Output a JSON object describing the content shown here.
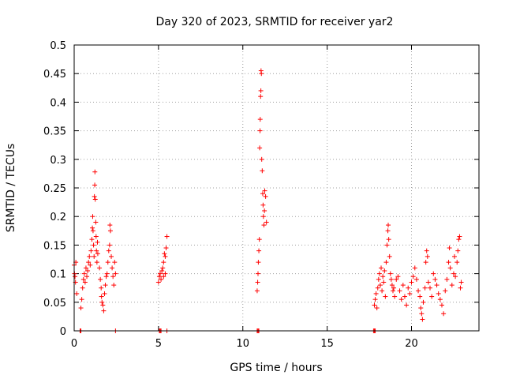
{
  "chart_data": {
    "type": "scatter",
    "title": "Day 320 of 2023, SRMTID for receiver yar2",
    "xlabel": "GPS time / hours",
    "ylabel": "SRMTID / TECUs",
    "xlim": [
      0,
      24
    ],
    "ylim": [
      0,
      0.5
    ],
    "x_ticks": [
      0,
      5,
      10,
      15,
      20
    ],
    "x_tick_labels": [
      "0",
      "5",
      "10",
      "15",
      "20"
    ],
    "y_ticks": [
      0,
      0.05,
      0.1,
      0.15,
      0.2,
      0.25,
      0.3,
      0.35,
      0.4,
      0.45,
      0.5
    ],
    "y_tick_labels": [
      "0",
      "0.05",
      "0.1",
      "0.15",
      "0.2",
      "0.25",
      "0.3",
      "0.35",
      "0.4",
      "0.45",
      "0.5"
    ],
    "grid": true,
    "marker": "+",
    "marker_color": "#ff0000",
    "series": [
      {
        "name": "SRMTID",
        "points": [
          [
            0.0,
            0.115
          ],
          [
            0.02,
            0.1
          ],
          [
            0.05,
            0.095
          ],
          [
            0.08,
            0.085
          ],
          [
            0.1,
            0.12
          ],
          [
            0.15,
            0.065
          ],
          [
            0.4,
            0.04
          ],
          [
            0.45,
            0.055
          ],
          [
            0.5,
            0.075
          ],
          [
            0.55,
            0.09
          ],
          [
            0.6,
            0.1
          ],
          [
            0.65,
            0.085
          ],
          [
            0.7,
            0.11
          ],
          [
            0.75,
            0.095
          ],
          [
            0.8,
            0.105
          ],
          [
            0.85,
            0.12
          ],
          [
            0.9,
            0.13
          ],
          [
            0.95,
            0.115
          ],
          [
            1.0,
            0.14
          ],
          [
            1.05,
            0.16
          ],
          [
            1.08,
            0.18
          ],
          [
            1.1,
            0.2
          ],
          [
            1.12,
            0.175
          ],
          [
            1.15,
            0.15
          ],
          [
            1.18,
            0.13
          ],
          [
            1.2,
            0.235
          ],
          [
            1.22,
            0.255
          ],
          [
            1.23,
            0.278
          ],
          [
            1.25,
            0.23
          ],
          [
            1.28,
            0.19
          ],
          [
            1.3,
            0.165
          ],
          [
            1.32,
            0.14
          ],
          [
            1.35,
            0.12
          ],
          [
            1.38,
            0.155
          ],
          [
            1.4,
            0.135
          ],
          [
            1.5,
            0.11
          ],
          [
            1.55,
            0.09
          ],
          [
            1.6,
            0.075
          ],
          [
            1.62,
            0.06
          ],
          [
            1.65,
            0.05
          ],
          [
            1.7,
            0.045
          ],
          [
            1.75,
            0.035
          ],
          [
            1.8,
            0.065
          ],
          [
            1.85,
            0.08
          ],
          [
            1.9,
            0.095
          ],
          [
            1.95,
            0.1
          ],
          [
            2.0,
            0.12
          ],
          [
            2.05,
            0.14
          ],
          [
            2.1,
            0.15
          ],
          [
            2.12,
            0.185
          ],
          [
            2.15,
            0.175
          ],
          [
            2.2,
            0.13
          ],
          [
            2.25,
            0.11
          ],
          [
            2.3,
            0.095
          ],
          [
            2.35,
            0.08
          ],
          [
            2.4,
            0.12
          ],
          [
            2.45,
            0.1
          ],
          [
            5.0,
            0.085
          ],
          [
            5.05,
            0.095
          ],
          [
            5.1,
            0.1
          ],
          [
            5.15,
            0.09
          ],
          [
            5.2,
            0.105
          ],
          [
            5.25,
            0.11
          ],
          [
            5.3,
            0.12
          ],
          [
            5.35,
            0.135
          ],
          [
            5.4,
            0.13
          ],
          [
            5.45,
            0.145
          ],
          [
            5.5,
            0.165
          ],
          [
            5.3,
            0.095
          ],
          [
            5.4,
            0.1
          ],
          [
            10.85,
            0.07
          ],
          [
            10.88,
            0.085
          ],
          [
            10.9,
            0.1
          ],
          [
            10.92,
            0.12
          ],
          [
            10.95,
            0.14
          ],
          [
            10.98,
            0.16
          ],
          [
            11.0,
            0.32
          ],
          [
            11.02,
            0.35
          ],
          [
            11.03,
            0.37
          ],
          [
            11.05,
            0.41
          ],
          [
            11.07,
            0.42
          ],
          [
            11.08,
            0.455
          ],
          [
            11.1,
            0.45
          ],
          [
            11.12,
            0.3
          ],
          [
            11.15,
            0.28
          ],
          [
            11.18,
            0.24
          ],
          [
            11.2,
            0.22
          ],
          [
            11.22,
            0.2
          ],
          [
            11.25,
            0.185
          ],
          [
            11.28,
            0.21
          ],
          [
            11.3,
            0.245
          ],
          [
            11.35,
            0.235
          ],
          [
            11.4,
            0.19
          ],
          [
            17.8,
            0.045
          ],
          [
            17.85,
            0.055
          ],
          [
            17.9,
            0.065
          ],
          [
            17.95,
            0.04
          ],
          [
            18.0,
            0.075
          ],
          [
            18.05,
            0.09
          ],
          [
            18.1,
            0.1
          ],
          [
            18.15,
            0.08
          ],
          [
            18.2,
            0.11
          ],
          [
            18.25,
            0.07
          ],
          [
            18.3,
            0.095
          ],
          [
            18.35,
            0.085
          ],
          [
            18.4,
            0.105
          ],
          [
            18.45,
            0.06
          ],
          [
            18.5,
            0.12
          ],
          [
            18.55,
            0.15
          ],
          [
            18.6,
            0.175
          ],
          [
            18.62,
            0.185
          ],
          [
            18.65,
            0.16
          ],
          [
            18.7,
            0.13
          ],
          [
            18.75,
            0.1
          ],
          [
            18.8,
            0.09
          ],
          [
            18.85,
            0.08
          ],
          [
            18.9,
            0.07
          ],
          [
            18.95,
            0.075
          ],
          [
            19.0,
            0.06
          ],
          [
            19.1,
            0.09
          ],
          [
            19.2,
            0.095
          ],
          [
            19.3,
            0.07
          ],
          [
            19.4,
            0.055
          ],
          [
            19.5,
            0.08
          ],
          [
            19.6,
            0.06
          ],
          [
            19.7,
            0.045
          ],
          [
            19.8,
            0.075
          ],
          [
            19.9,
            0.065
          ],
          [
            20.0,
            0.085
          ],
          [
            20.1,
            0.095
          ],
          [
            20.2,
            0.11
          ],
          [
            20.3,
            0.09
          ],
          [
            20.4,
            0.07
          ],
          [
            20.5,
            0.06
          ],
          [
            20.55,
            0.04
          ],
          [
            20.6,
            0.03
          ],
          [
            20.65,
            0.02
          ],
          [
            20.7,
            0.05
          ],
          [
            20.8,
            0.075
          ],
          [
            20.85,
            0.12
          ],
          [
            20.9,
            0.14
          ],
          [
            20.95,
            0.13
          ],
          [
            21.0,
            0.085
          ],
          [
            21.1,
            0.075
          ],
          [
            21.2,
            0.06
          ],
          [
            21.3,
            0.1
          ],
          [
            21.4,
            0.09
          ],
          [
            21.5,
            0.08
          ],
          [
            21.6,
            0.065
          ],
          [
            21.7,
            0.055
          ],
          [
            21.8,
            0.045
          ],
          [
            21.9,
            0.03
          ],
          [
            22.0,
            0.07
          ],
          [
            22.1,
            0.09
          ],
          [
            22.2,
            0.12
          ],
          [
            22.25,
            0.145
          ],
          [
            22.3,
            0.11
          ],
          [
            22.4,
            0.08
          ],
          [
            22.5,
            0.1
          ],
          [
            22.55,
            0.13
          ],
          [
            22.6,
            0.095
          ],
          [
            22.7,
            0.12
          ],
          [
            22.75,
            0.14
          ],
          [
            22.8,
            0.16
          ],
          [
            22.85,
            0.165
          ],
          [
            22.9,
            0.075
          ],
          [
            22.95,
            0.085
          ]
        ],
        "baseline_x": [
          0.35,
          0.4,
          5.05,
          5.1,
          5.15,
          5.5,
          10.85,
          10.9,
          10.95,
          17.75,
          17.8,
          17.85,
          2.45
        ]
      }
    ]
  }
}
